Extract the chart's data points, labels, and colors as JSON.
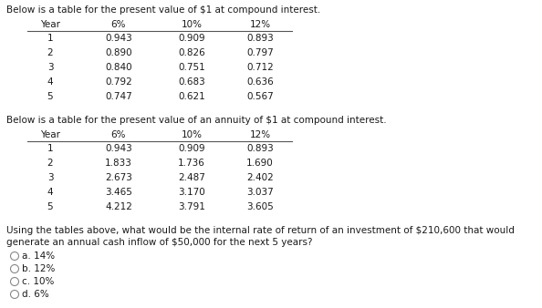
{
  "title1": "Below is a table for the present value of $1 at compound interest.",
  "title2": "Below is a table for the present value of an annuity of $1 at compound interest.",
  "question_line1": "Using the tables above, what would be the internal rate of return of an investment of $210,600 that would",
  "question_line2": "generate an annual cash inflow of $50,000 for the next 5 years?",
  "options": [
    "a. 14%",
    "b. 12%",
    "c. 10%",
    "d. 6%"
  ],
  "table1_headers": [
    "Year",
    "6%",
    "10%",
    "12%"
  ],
  "table1_data": [
    [
      1,
      "0.943",
      "0.909",
      "0.893"
    ],
    [
      2,
      "0.890",
      "0.826",
      "0.797"
    ],
    [
      3,
      "0.840",
      "0.751",
      "0.712"
    ],
    [
      4,
      "0.792",
      "0.683",
      "0.636"
    ],
    [
      5,
      "0.747",
      "0.621",
      "0.567"
    ]
  ],
  "table2_headers": [
    "Year",
    "6%",
    "10%",
    "12%"
  ],
  "table2_data": [
    [
      1,
      "0.943",
      "0.909",
      "0.893"
    ],
    [
      2,
      "1.833",
      "1.736",
      "1.690"
    ],
    [
      3,
      "2.673",
      "2.487",
      "2.402"
    ],
    [
      4,
      "3.465",
      "3.170",
      "3.037"
    ],
    [
      5,
      "4.212",
      "3.791",
      "3.605"
    ]
  ],
  "bg_color": "#ffffff",
  "text_color": "#1a1a1a",
  "font_size": 7.5,
  "title_font_size": 7.5
}
